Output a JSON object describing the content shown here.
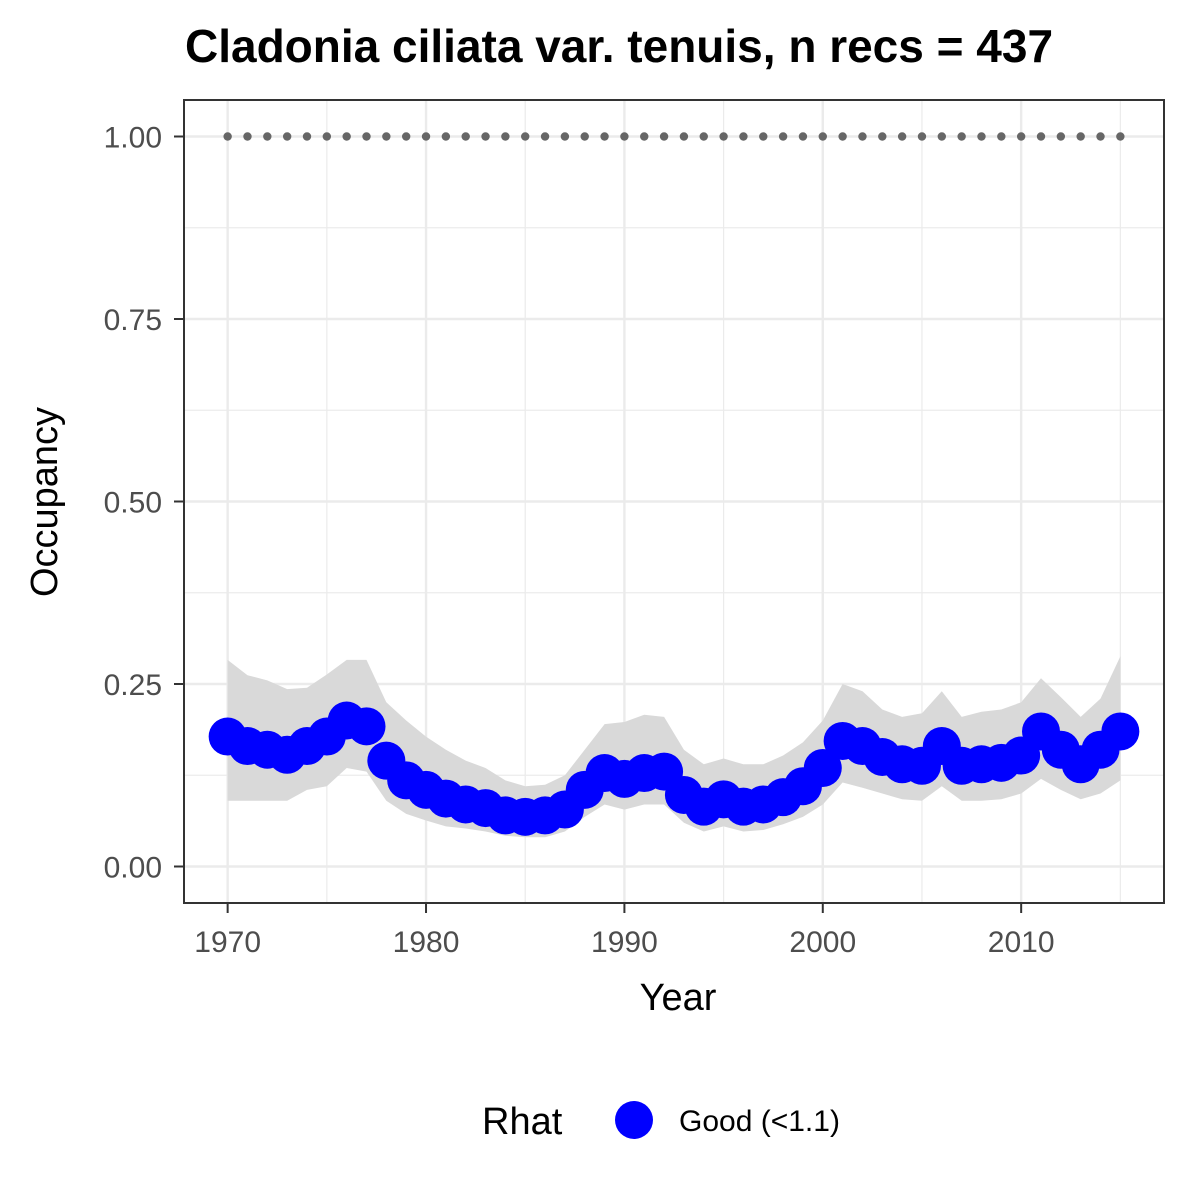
{
  "chart_data": {
    "type": "line",
    "title": "Cladonia ciliata var. tenuis, n recs = 437",
    "xlabel": "Year",
    "ylabel": "Occupancy",
    "xlim": [
      1967.8,
      2017.2
    ],
    "ylim": [
      -0.05,
      1.05
    ],
    "x_ticks": [
      1970,
      1980,
      1990,
      2000,
      2010
    ],
    "x_tick_labels": [
      "1970",
      "1980",
      "1990",
      "2000",
      "2010"
    ],
    "y_ticks": [
      0,
      0.25,
      0.5,
      0.75,
      1.0
    ],
    "y_tick_labels": [
      "0.00",
      "0.25",
      "0.50",
      "0.75",
      "1.00"
    ],
    "grid": true,
    "legend": {
      "position": "bottom",
      "title": "Rhat",
      "entries": [
        {
          "label": "Good (<1.1)",
          "color": "#0000ff"
        }
      ]
    },
    "colors": {
      "points": "#0000ff",
      "ribbon": "#d9d9d9",
      "reference": "#666666",
      "panel_border": "#333333",
      "grid": "#ebebeb"
    },
    "x": [
      1970,
      1971,
      1972,
      1973,
      1974,
      1975,
      1976,
      1977,
      1978,
      1979,
      1980,
      1981,
      1982,
      1983,
      1984,
      1985,
      1986,
      1987,
      1988,
      1989,
      1990,
      1991,
      1992,
      1993,
      1994,
      1995,
      1996,
      1997,
      1998,
      1999,
      2000,
      2001,
      2002,
      2003,
      2004,
      2005,
      2006,
      2007,
      2008,
      2009,
      2010,
      2011,
      2012,
      2013,
      2014,
      2015
    ],
    "series": [
      {
        "values": [
          0.178,
          0.165,
          0.16,
          0.153,
          0.165,
          0.178,
          0.2,
          0.192,
          0.145,
          0.118,
          0.105,
          0.093,
          0.085,
          0.08,
          0.07,
          0.068,
          0.07,
          0.078,
          0.105,
          0.128,
          0.12,
          0.128,
          0.13,
          0.098,
          0.082,
          0.092,
          0.082,
          0.085,
          0.095,
          0.11,
          0.135,
          0.172,
          0.165,
          0.15,
          0.14,
          0.138,
          0.165,
          0.138,
          0.14,
          0.142,
          0.152,
          0.185,
          0.16,
          0.14,
          0.16,
          0.185
        ]
      }
    ],
    "ribbon": {
      "lower": [
        0.09,
        0.09,
        0.09,
        0.09,
        0.105,
        0.11,
        0.135,
        0.13,
        0.09,
        0.072,
        0.063,
        0.055,
        0.052,
        0.048,
        0.042,
        0.04,
        0.04,
        0.048,
        0.068,
        0.085,
        0.078,
        0.085,
        0.085,
        0.06,
        0.048,
        0.055,
        0.048,
        0.05,
        0.058,
        0.068,
        0.085,
        0.115,
        0.108,
        0.1,
        0.092,
        0.09,
        0.11,
        0.09,
        0.09,
        0.092,
        0.1,
        0.12,
        0.105,
        0.092,
        0.1,
        0.118
      ],
      "upper": [
        0.283,
        0.262,
        0.255,
        0.243,
        0.245,
        0.263,
        0.283,
        0.283,
        0.225,
        0.2,
        0.178,
        0.16,
        0.145,
        0.135,
        0.118,
        0.11,
        0.112,
        0.125,
        0.16,
        0.195,
        0.198,
        0.208,
        0.205,
        0.16,
        0.14,
        0.148,
        0.14,
        0.14,
        0.152,
        0.17,
        0.2,
        0.25,
        0.24,
        0.215,
        0.205,
        0.21,
        0.24,
        0.205,
        0.212,
        0.215,
        0.225,
        0.258,
        0.232,
        0.205,
        0.23,
        0.288
      ]
    },
    "reference_line": {
      "y": 1.0,
      "style": "dotted"
    }
  }
}
